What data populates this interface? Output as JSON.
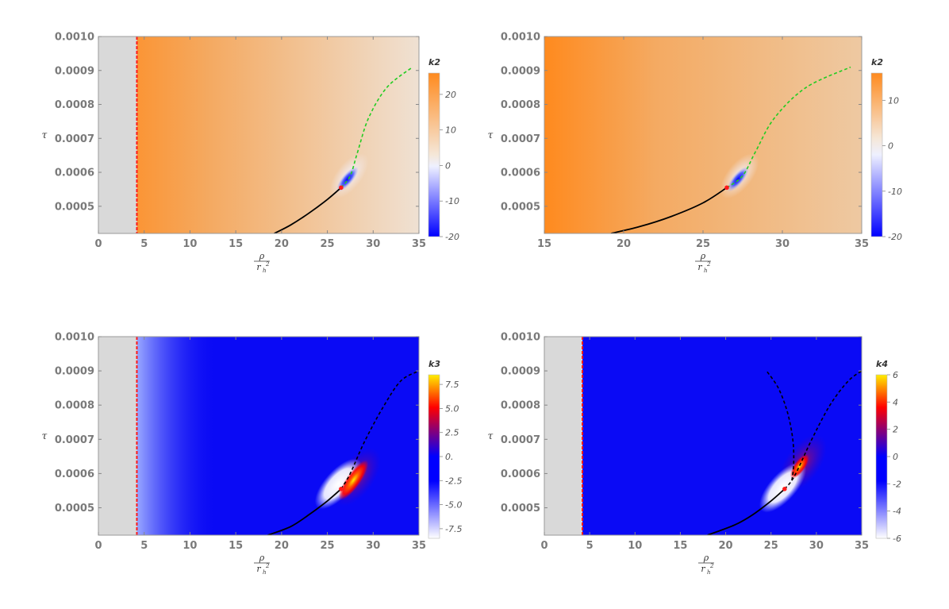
{
  "chart_data": [
    {
      "type": "heatmap",
      "panel": "top-left",
      "xlabel_num": "ρ",
      "xlabel_den": "r",
      "xlabel_den_sub": "h",
      "xlabel_den_sup": "2",
      "ylabel": "τ",
      "xlim": [
        0,
        35
      ],
      "ylim": [
        0.00042,
        0.001
      ],
      "xticks": [
        0,
        5,
        10,
        15,
        20,
        25,
        30,
        35
      ],
      "yticks": [
        "0.0005",
        "0.0006",
        "0.0007",
        "0.0008",
        "0.0009",
        "0.0010"
      ],
      "ytick_values": [
        0.0005,
        0.0006,
        0.0007,
        0.0008,
        0.0009,
        0.001
      ],
      "excluded_region_x": [
        0,
        4.2
      ],
      "boundary_line_x": 4.2,
      "colorbar": {
        "title": "k2",
        "range": [
          -20,
          26
        ],
        "ticks": [
          "20",
          "10",
          "0",
          "-10",
          "-20"
        ],
        "tick_values": [
          20,
          10,
          0,
          -10,
          -20
        ],
        "colors": [
          "#0000ff",
          "#eef0ff",
          "#f5e7d8",
          "#ff8a1e"
        ],
        "color_stops": [
          0,
          0.43,
          0.5,
          1
        ]
      },
      "field": {
        "base": "orange-gradient",
        "left_value": 24,
        "right_value": 5,
        "blob_center": [
          27.2,
          0.00058
        ],
        "blob_value": -20
      },
      "curves": [
        {
          "style": "solid",
          "color": "#000000",
          "points": [
            [
              19.2,
              0.00042
            ],
            [
              21,
              0.000445
            ],
            [
              23,
              0.00048
            ],
            [
              25,
              0.00052
            ],
            [
              26.5,
              0.000555
            ]
          ]
        },
        {
          "style": "dashed",
          "color": "#22cc22",
          "points": [
            [
              26.5,
              0.000555
            ],
            [
              27.5,
              0.00059
            ],
            [
              28.3,
              0.00066
            ],
            [
              29.5,
              0.00076
            ],
            [
              31.5,
              0.00085
            ],
            [
              34.3,
              0.00091
            ]
          ]
        }
      ],
      "critical_point": [
        26.5,
        0.000555
      ]
    },
    {
      "type": "heatmap",
      "panel": "top-right",
      "xlabel_num": "ρ",
      "xlabel_den": "r",
      "xlabel_den_sub": "h",
      "xlabel_den_sup": "2",
      "ylabel": "τ",
      "xlim": [
        15,
        35
      ],
      "ylim": [
        0.00042,
        0.001
      ],
      "xticks": [
        15,
        20,
        25,
        30,
        35
      ],
      "yticks": [
        "0.0005",
        "0.0006",
        "0.0007",
        "0.0008",
        "0.0009",
        "0.0010"
      ],
      "ytick_values": [
        0.0005,
        0.0006,
        0.0007,
        0.0008,
        0.0009,
        0.001
      ],
      "colorbar": {
        "title": "k2",
        "range": [
          -20,
          16
        ],
        "ticks": [
          "10",
          "0",
          "-10",
          "-20"
        ],
        "tick_values": [
          10,
          0,
          -10,
          -20
        ],
        "colors": [
          "#0000ff",
          "#eef0ff",
          "#f5e7d8",
          "#ff8a1e"
        ],
        "color_stops": [
          0,
          0.5,
          0.6,
          1
        ]
      },
      "field": {
        "base": "orange-gradient",
        "left_value": 15,
        "right_value": 6,
        "blob_center": [
          27.2,
          0.00058
        ],
        "blob_value": -20
      },
      "curves": [
        {
          "style": "solid",
          "color": "#000000",
          "points": [
            [
              19.2,
              0.00042
            ],
            [
              21,
              0.00044
            ],
            [
              23,
              0.00047
            ],
            [
              25,
              0.00051
            ],
            [
              26.5,
              0.000555
            ]
          ]
        },
        {
          "style": "dashed",
          "color": "#22cc22",
          "points": [
            [
              26.5,
              0.000555
            ],
            [
              27.5,
              0.00059
            ],
            [
              28.3,
              0.00066
            ],
            [
              29.5,
              0.00076
            ],
            [
              31.5,
              0.00085
            ],
            [
              34.3,
              0.00091
            ]
          ]
        }
      ],
      "critical_point": [
        26.5,
        0.000555
      ]
    },
    {
      "type": "heatmap",
      "panel": "bottom-left",
      "xlabel_num": "ρ",
      "xlabel_den": "r",
      "xlabel_den_sub": "h",
      "xlabel_den_sup": "2",
      "ylabel": "τ",
      "xlim": [
        0,
        35
      ],
      "ylim": [
        0.00042,
        0.001
      ],
      "xticks": [
        0,
        5,
        10,
        15,
        20,
        25,
        30,
        35
      ],
      "yticks": [
        "0.0005",
        "0.0006",
        "0.0007",
        "0.0008",
        "0.0009",
        "0.0010"
      ],
      "ytick_values": [
        0.0005,
        0.0006,
        0.0007,
        0.0008,
        0.0009,
        0.001
      ],
      "excluded_region_x": [
        0,
        4.2
      ],
      "boundary_line_x": 4.2,
      "colorbar": {
        "title": "k3",
        "range": [
          -8.5,
          8.5
        ],
        "ticks": [
          "7.5",
          "5.0",
          "2.5",
          "0.",
          "-2.5",
          "-5.0",
          "-7.5"
        ],
        "tick_values": [
          7.5,
          5.0,
          2.5,
          0,
          -2.5,
          -5.0,
          -7.5
        ],
        "colors": [
          "#ffffff",
          "#0000ff",
          "#0000ff",
          "#ff0000",
          "#ffee00"
        ],
        "color_stops": [
          0,
          0.35,
          0.5,
          0.8,
          1
        ]
      },
      "field": {
        "base": "blue",
        "left_fade": true,
        "white_lobe_center": [
          26.2,
          0.00057
        ],
        "red_lobe_center": [
          28.2,
          0.00059
        ]
      },
      "curves": [
        {
          "style": "solid",
          "color": "#000000",
          "points": [
            [
              18.5,
              0.00042
            ],
            [
              21,
              0.000445
            ],
            [
              23,
              0.00048
            ],
            [
              25,
              0.00052
            ],
            [
              26.5,
              0.000555
            ]
          ]
        },
        {
          "style": "dashed",
          "color": "#000000",
          "points": [
            [
              26.5,
              0.000555
            ],
            [
              27.5,
              0.0006
            ],
            [
              29,
              0.00069
            ],
            [
              31,
              0.00079
            ],
            [
              33,
              0.00087
            ],
            [
              35,
              0.0009
            ]
          ]
        }
      ],
      "critical_point": [
        26.5,
        0.000555
      ]
    },
    {
      "type": "heatmap",
      "panel": "bottom-right",
      "xlabel_num": "ρ",
      "xlabel_den": "r",
      "xlabel_den_sub": "h",
      "xlabel_den_sup": "2",
      "ylabel": "τ",
      "xlim": [
        0,
        35
      ],
      "ylim": [
        0.00042,
        0.001
      ],
      "xticks": [
        0,
        5,
        10,
        15,
        20,
        25,
        30,
        35
      ],
      "yticks": [
        "0.0005",
        "0.0006",
        "0.0007",
        "0.0008",
        "0.0009",
        "0.0010"
      ],
      "ytick_values": [
        0.0005,
        0.0006,
        0.0007,
        0.0008,
        0.0009,
        0.001
      ],
      "excluded_region_x": [
        0,
        4.2
      ],
      "boundary_line_x": 4.2,
      "colorbar": {
        "title": "k4",
        "range": [
          -6,
          6
        ],
        "ticks": [
          "6",
          "4",
          "2",
          "0",
          "-2",
          "-4",
          "-6"
        ],
        "tick_values": [
          6,
          4,
          2,
          0,
          -2,
          -4,
          -6
        ],
        "colors": [
          "#ffffff",
          "#0000ff",
          "#0000ff",
          "#ff0000",
          "#ffee00"
        ],
        "color_stops": [
          0,
          0.35,
          0.5,
          0.8,
          1
        ]
      },
      "field": {
        "base": "blue",
        "white_lobe_center": [
          26.3,
          0.00056
        ],
        "red_lobe_center": [
          28.5,
          0.00063
        ]
      },
      "curves": [
        {
          "style": "solid",
          "color": "#000000",
          "points": [
            [
              18,
              0.00042
            ],
            [
              21,
              0.00045
            ],
            [
              23,
              0.00048
            ],
            [
              25,
              0.00052
            ],
            [
              26.5,
              0.000555
            ]
          ]
        },
        {
          "style": "dashed",
          "color": "#000000",
          "points": [
            [
              26.5,
              0.000555
            ],
            [
              27.3,
              0.00058
            ],
            [
              28.1,
              0.00062
            ],
            [
              29.5,
              0.0007
            ],
            [
              31.5,
              0.0008
            ],
            [
              33.5,
              0.00087
            ],
            [
              35,
              0.0009
            ]
          ]
        },
        {
          "style": "dashed",
          "color": "#000000",
          "points": [
            [
              27.3,
              0.00058
            ],
            [
              27.5,
              0.00063
            ],
            [
              27.4,
              0.0007
            ],
            [
              26.8,
              0.00078
            ],
            [
              25.8,
              0.00085
            ],
            [
              24.5,
              0.0009
            ]
          ]
        }
      ],
      "critical_point": [
        26.5,
        0.000555
      ]
    }
  ]
}
